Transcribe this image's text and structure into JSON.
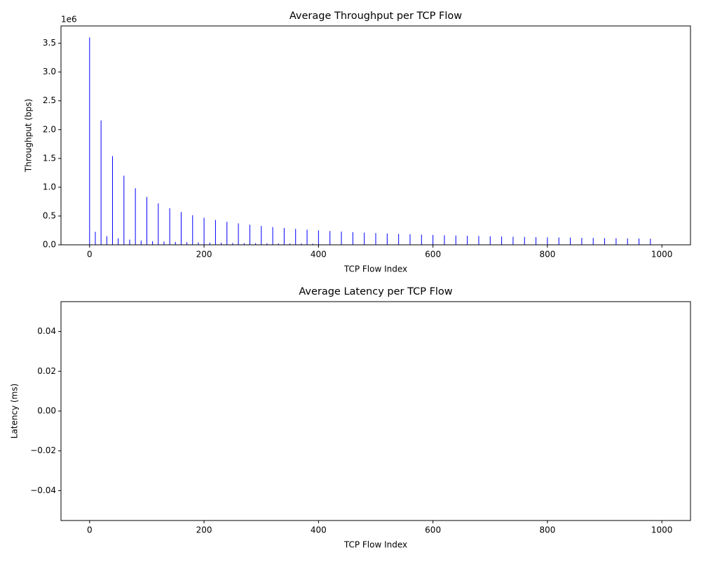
{
  "chart_data": [
    {
      "type": "bar",
      "title": "Average Throughput per TCP Flow",
      "xlabel": "TCP Flow Index",
      "ylabel": "Throughput (bps)",
      "y_offset_label": "1e6",
      "color": "#0000ff",
      "x": [
        0,
        10,
        20,
        30,
        40,
        50,
        60,
        70,
        80,
        90,
        100,
        110,
        120,
        130,
        140,
        150,
        160,
        170,
        180,
        190,
        200,
        210,
        220,
        230,
        240,
        250,
        260,
        270,
        280,
        290,
        300,
        310,
        320,
        330,
        340,
        350,
        360,
        370,
        380,
        390,
        400,
        420,
        440,
        460,
        480,
        500,
        520,
        540,
        560,
        580,
        600,
        620,
        640,
        660,
        680,
        700,
        720,
        740,
        760,
        780,
        800,
        820,
        840,
        860,
        880,
        900,
        920,
        940,
        960,
        980
      ],
      "values": [
        3600000,
        225000,
        2160000,
        150000,
        1540000,
        113000,
        1200000,
        90000,
        982000,
        75000,
        831000,
        64000,
        720000,
        56000,
        635000,
        50000,
        568000,
        45000,
        514000,
        41000,
        470000,
        38000,
        432000,
        35000,
        400000,
        32000,
        372000,
        30000,
        348000,
        28000,
        327000,
        26000,
        309000,
        25000,
        292000,
        24000,
        277000,
        23000,
        263000,
        21000,
        251000,
        240000,
        230000,
        220000,
        212000,
        204000,
        196000,
        189000,
        183000,
        177000,
        171000,
        166000,
        161000,
        157000,
        152000,
        148000,
        144000,
        140000,
        137000,
        133000,
        130000,
        127000,
        124000,
        121000,
        119000,
        116000,
        114000,
        111000,
        109000,
        107000
      ],
      "xlim": [
        -50,
        1050
      ],
      "ylim": [
        0,
        3800000
      ],
      "xticks": [
        0,
        200,
        400,
        600,
        800,
        1000
      ],
      "yticks": [
        {
          "value": 0,
          "label": "0.0"
        },
        {
          "value": 500000,
          "label": "0.5"
        },
        {
          "value": 1000000,
          "label": "1.0"
        },
        {
          "value": 1500000,
          "label": "1.5"
        },
        {
          "value": 2000000,
          "label": "2.0"
        },
        {
          "value": 2500000,
          "label": "2.5"
        },
        {
          "value": 3000000,
          "label": "3.0"
        },
        {
          "value": 3500000,
          "label": "3.5"
        }
      ]
    },
    {
      "type": "bar",
      "title": "Average Latency per TCP Flow",
      "xlabel": "TCP Flow Index",
      "ylabel": "Latency (ms)",
      "xlim": [
        -50,
        1050
      ],
      "ylim": [
        -0.055,
        0.055
      ],
      "xticks": [
        0,
        200,
        400,
        600,
        800,
        1000
      ],
      "yticks": [
        {
          "value": -0.04,
          "label": "−0.04"
        },
        {
          "value": -0.02,
          "label": "−0.02"
        },
        {
          "value": 0,
          "label": "0.00"
        },
        {
          "value": 0.02,
          "label": "0.02"
        },
        {
          "value": 0.04,
          "label": "0.04"
        }
      ]
    }
  ]
}
